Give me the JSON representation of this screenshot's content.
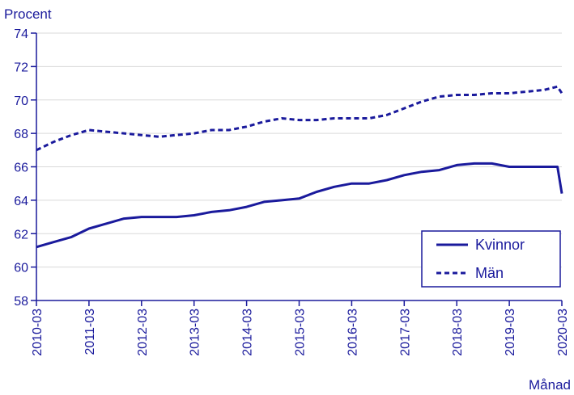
{
  "chart_data": {
    "type": "line",
    "ylabel": "Procent",
    "xlabel": "Månad",
    "ylim": [
      58,
      74
    ],
    "yticks": [
      58,
      60,
      62,
      64,
      66,
      68,
      70,
      72,
      74
    ],
    "xticks": [
      "2010-03",
      "2011-03",
      "2012-03",
      "2013-03",
      "2014-03",
      "2015-03",
      "2016-03",
      "2017-03",
      "2018-03",
      "2019-03",
      "2020-03"
    ],
    "grid": "horizontal",
    "legend_position": "bottom-right",
    "colors": {
      "line": "#1a1a9c",
      "grid": "#d9d9d9",
      "axis": "#1a1a9c"
    },
    "series": [
      {
        "name": "Kvinnor",
        "style": "solid",
        "x": [
          "2010-03",
          "2010-07",
          "2010-11",
          "2011-03",
          "2011-07",
          "2011-11",
          "2012-03",
          "2012-07",
          "2012-11",
          "2013-03",
          "2013-07",
          "2013-11",
          "2014-03",
          "2014-07",
          "2014-11",
          "2015-03",
          "2015-07",
          "2015-11",
          "2016-03",
          "2016-07",
          "2016-11",
          "2017-03",
          "2017-07",
          "2017-11",
          "2018-03",
          "2018-07",
          "2018-11",
          "2019-03",
          "2019-07",
          "2019-11",
          "2020-02",
          "2020-03"
        ],
        "values": [
          61.2,
          61.5,
          61.8,
          62.3,
          62.6,
          62.9,
          63.0,
          63.0,
          63.0,
          63.1,
          63.3,
          63.4,
          63.6,
          63.9,
          64.0,
          64.1,
          64.5,
          64.8,
          65.0,
          65.0,
          65.2,
          65.5,
          65.7,
          65.8,
          66.1,
          66.2,
          66.2,
          66.0,
          66.0,
          66.0,
          66.0,
          64.4
        ]
      },
      {
        "name": "Män",
        "style": "dashed",
        "x": [
          "2010-03",
          "2010-07",
          "2010-11",
          "2011-03",
          "2011-07",
          "2011-11",
          "2012-03",
          "2012-07",
          "2012-11",
          "2013-03",
          "2013-07",
          "2013-11",
          "2014-03",
          "2014-07",
          "2014-11",
          "2015-03",
          "2015-07",
          "2015-11",
          "2016-03",
          "2016-07",
          "2016-11",
          "2017-03",
          "2017-07",
          "2017-11",
          "2018-03",
          "2018-07",
          "2018-11",
          "2019-03",
          "2019-07",
          "2019-11",
          "2020-02",
          "2020-03"
        ],
        "values": [
          67.0,
          67.5,
          67.9,
          68.2,
          68.1,
          68.0,
          67.9,
          67.8,
          67.9,
          68.0,
          68.2,
          68.2,
          68.4,
          68.7,
          68.9,
          68.8,
          68.8,
          68.9,
          68.9,
          68.9,
          69.1,
          69.5,
          69.9,
          70.2,
          70.3,
          70.3,
          70.4,
          70.4,
          70.5,
          70.6,
          70.8,
          70.4
        ]
      }
    ]
  }
}
